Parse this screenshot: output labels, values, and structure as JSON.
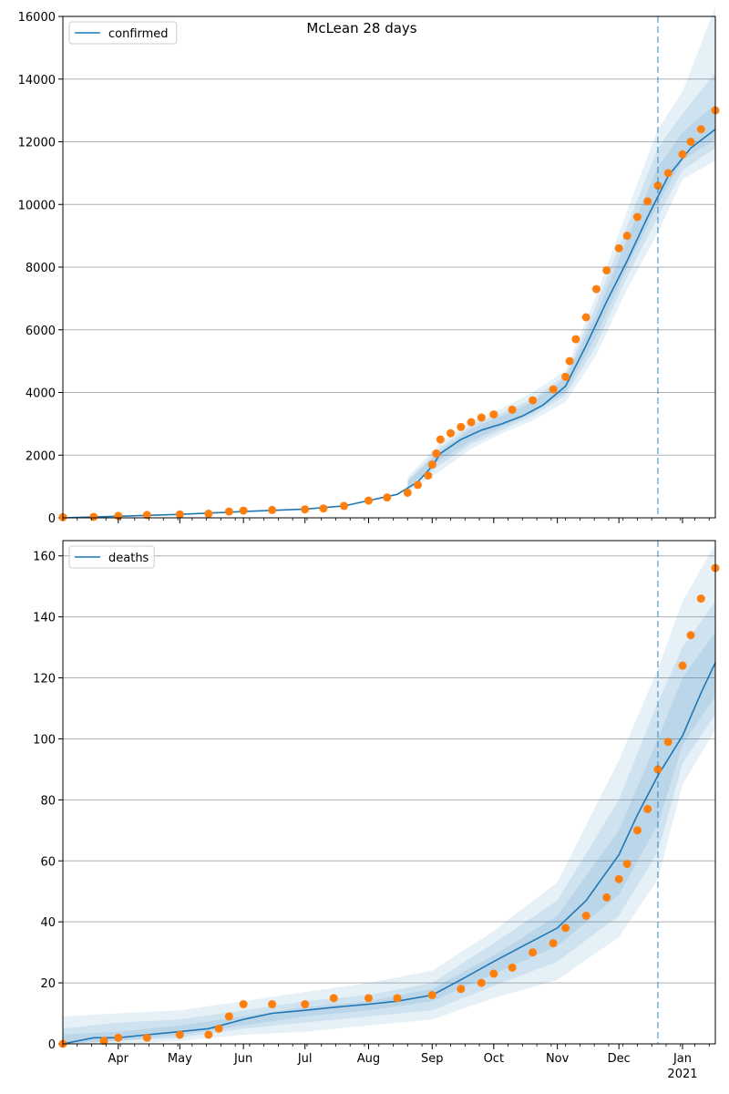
{
  "title": "McLean 28 days",
  "colors": {
    "model_line": "#1f77b4",
    "observed": "#ff7f0e",
    "band": "#1f77b4",
    "grid": "#b0b0b0",
    "vline": "#1f77b4"
  },
  "chart_data": [
    {
      "type": "line",
      "name": "confirmed-panel",
      "title": "McLean 28 days",
      "xlabel": "",
      "ylabel": "",
      "x_range": [
        "2020-03-05",
        "2021-01-17"
      ],
      "ylim": [
        0,
        16000
      ],
      "y_ticks": [
        0,
        2000,
        4000,
        6000,
        8000,
        10000,
        12000,
        14000,
        16000
      ],
      "x_ticks": [],
      "grid": "y",
      "legend": {
        "position": "top-left",
        "entries": [
          "confirmed"
        ]
      },
      "vline_date": "2020-12-20",
      "bands": [
        {
          "x": [
            "2020-08-20",
            "2020-09-05",
            "2020-09-20",
            "2020-10-05",
            "2020-10-20",
            "2020-11-05",
            "2020-11-20",
            "2020-12-05",
            "2020-12-20",
            "2021-01-01",
            "2021-01-17"
          ],
          "lower": [
            800,
            1500,
            2200,
            2700,
            3100,
            3700,
            5200,
            7300,
            9100,
            10800,
            11400
          ],
          "upper": [
            1300,
            2400,
            3100,
            3500,
            4000,
            4700,
            7100,
            9800,
            12400,
            13600,
            16300
          ]
        },
        {
          "x": [
            "2020-08-20",
            "2020-09-05",
            "2020-09-20",
            "2020-10-05",
            "2020-10-20",
            "2020-11-05",
            "2020-11-20",
            "2020-12-05",
            "2020-12-20",
            "2021-01-01",
            "2021-01-17"
          ],
          "lower": [
            900,
            1700,
            2350,
            2800,
            3250,
            3900,
            5500,
            7700,
            9600,
            11100,
            11800
          ],
          "upper": [
            1200,
            2250,
            2950,
            3350,
            3800,
            4550,
            6800,
            9300,
            11800,
            12900,
            14200
          ]
        },
        {
          "x": [
            "2020-08-20",
            "2020-09-05",
            "2020-09-20",
            "2020-10-05",
            "2020-10-20",
            "2020-11-05",
            "2020-11-20",
            "2020-12-05",
            "2020-12-20",
            "2021-01-01",
            "2021-01-17"
          ],
          "lower": [
            950,
            1850,
            2450,
            2900,
            3350,
            4000,
            5800,
            8000,
            10000,
            11400,
            12100
          ],
          "upper": [
            1150,
            2150,
            2850,
            3250,
            3700,
            4450,
            6500,
            8900,
            11200,
            12300,
            13200
          ]
        }
      ],
      "series": [
        {
          "name": "confirmed",
          "style": "line",
          "x": [
            "2020-03-05",
            "2020-04-01",
            "2020-05-01",
            "2020-06-01",
            "2020-07-01",
            "2020-07-20",
            "2020-08-01",
            "2020-08-15",
            "2020-08-25",
            "2020-09-01",
            "2020-09-05",
            "2020-09-15",
            "2020-09-25",
            "2020-10-05",
            "2020-10-15",
            "2020-10-25",
            "2020-11-05",
            "2020-11-15",
            "2020-11-25",
            "2020-12-05",
            "2020-12-15",
            "2020-12-25",
            "2021-01-05",
            "2021-01-17"
          ],
          "y": [
            0,
            50,
            110,
            200,
            280,
            380,
            550,
            750,
            1150,
            1650,
            2050,
            2500,
            2800,
            3000,
            3250,
            3600,
            4200,
            5500,
            6900,
            8200,
            9600,
            10900,
            11800,
            12400
          ]
        },
        {
          "name": "observed",
          "style": "points",
          "x": [
            "2020-03-05",
            "2020-03-20",
            "2020-04-01",
            "2020-04-15",
            "2020-05-01",
            "2020-05-15",
            "2020-05-25",
            "2020-06-01",
            "2020-06-15",
            "2020-07-01",
            "2020-07-10",
            "2020-07-20",
            "2020-08-01",
            "2020-08-10",
            "2020-08-20",
            "2020-08-25",
            "2020-08-30",
            "2020-09-01",
            "2020-09-03",
            "2020-09-05",
            "2020-09-10",
            "2020-09-15",
            "2020-09-20",
            "2020-09-25",
            "2020-10-01",
            "2020-10-10",
            "2020-10-20",
            "2020-10-30",
            "2020-11-05",
            "2020-11-07",
            "2020-11-10",
            "2020-11-15",
            "2020-11-20",
            "2020-11-25",
            "2020-12-01",
            "2020-12-05",
            "2020-12-10",
            "2020-12-15",
            "2020-12-20",
            "2020-12-25",
            "2021-01-01",
            "2021-01-05",
            "2021-01-10",
            "2021-01-17"
          ],
          "y": [
            20,
            30,
            60,
            90,
            110,
            130,
            200,
            230,
            250,
            270,
            300,
            380,
            550,
            650,
            800,
            1050,
            1350,
            1700,
            2050,
            2500,
            2700,
            2900,
            3050,
            3200,
            3300,
            3450,
            3750,
            4100,
            4500,
            5000,
            5700,
            6400,
            7300,
            7900,
            8600,
            9000,
            9600,
            10100,
            10600,
            11000,
            11600,
            12000,
            12400,
            13000
          ]
        }
      ]
    },
    {
      "type": "line",
      "name": "deaths-panel",
      "title": "",
      "xlabel": "",
      "ylabel": "",
      "x_range": [
        "2020-03-05",
        "2021-01-17"
      ],
      "ylim": [
        0,
        165
      ],
      "y_ticks": [
        0,
        20,
        40,
        60,
        80,
        100,
        120,
        140,
        160
      ],
      "x_ticks": [
        {
          "date": "2020-04-01",
          "label": "Apr"
        },
        {
          "date": "2020-05-01",
          "label": "May"
        },
        {
          "date": "2020-06-01",
          "label": "Jun"
        },
        {
          "date": "2020-07-01",
          "label": "Jul"
        },
        {
          "date": "2020-08-01",
          "label": "Aug"
        },
        {
          "date": "2020-09-01",
          "label": "Sep"
        },
        {
          "date": "2020-10-01",
          "label": "Oct"
        },
        {
          "date": "2020-11-01",
          "label": "Nov"
        },
        {
          "date": "2020-12-01",
          "label": "Dec"
        },
        {
          "date": "2021-01-01",
          "label": "Jan",
          "sublabel": "2021"
        }
      ],
      "grid": "y",
      "legend": {
        "position": "top-left",
        "entries": [
          "deaths"
        ]
      },
      "vline_date": "2020-12-20",
      "bands": [
        {
          "x": [
            "2020-03-05",
            "2020-04-01",
            "2020-05-01",
            "2020-06-01",
            "2020-07-01",
            "2020-08-01",
            "2020-09-01",
            "2020-10-01",
            "2020-11-01",
            "2020-12-01",
            "2020-12-20",
            "2021-01-01",
            "2021-01-17"
          ],
          "lower": [
            0,
            0,
            1,
            3,
            4,
            6,
            8,
            15,
            21,
            35,
            54,
            85,
            103
          ],
          "upper": [
            9,
            10,
            11,
            14,
            17,
            20,
            24,
            37,
            53,
            93,
            123,
            145,
            164
          ]
        },
        {
          "x": [
            "2020-03-05",
            "2020-04-01",
            "2020-05-01",
            "2020-06-01",
            "2020-07-01",
            "2020-08-01",
            "2020-09-01",
            "2020-10-01",
            "2020-11-01",
            "2020-12-01",
            "2020-12-20",
            "2021-01-01",
            "2021-01-17"
          ],
          "lower": [
            0,
            1,
            2,
            5,
            7,
            9,
            11,
            19,
            27,
            42,
            63,
            92,
            108
          ],
          "upper": [
            5,
            7,
            8,
            11,
            14,
            16,
            20,
            33,
            47,
            80,
            112,
            130,
            145
          ]
        },
        {
          "x": [
            "2020-03-05",
            "2020-04-01",
            "2020-05-01",
            "2020-06-01",
            "2020-07-01",
            "2020-08-01",
            "2020-09-01",
            "2020-10-01",
            "2020-11-01",
            "2020-12-01",
            "2020-12-20",
            "2021-01-01",
            "2021-01-17"
          ],
          "lower": [
            0,
            1,
            3,
            6,
            9,
            11,
            14,
            23,
            32,
            49,
            72,
            98,
            114
          ],
          "upper": [
            3,
            4,
            6,
            9,
            12,
            14,
            18,
            29,
            42,
            70,
            100,
            120,
            135
          ]
        }
      ],
      "series": [
        {
          "name": "deaths",
          "style": "line",
          "x": [
            "2020-03-05",
            "2020-03-20",
            "2020-04-01",
            "2020-04-15",
            "2020-05-01",
            "2020-05-15",
            "2020-06-01",
            "2020-06-15",
            "2020-07-01",
            "2020-07-15",
            "2020-08-01",
            "2020-08-15",
            "2020-09-01",
            "2020-09-15",
            "2020-10-01",
            "2020-10-15",
            "2020-11-01",
            "2020-11-15",
            "2020-12-01",
            "2020-12-10",
            "2020-12-20",
            "2021-01-01",
            "2021-01-10",
            "2021-01-17"
          ],
          "y": [
            0,
            2,
            2,
            3,
            4,
            5,
            8,
            10,
            11,
            12,
            13,
            14,
            16,
            21,
            27,
            32,
            38,
            47,
            62,
            75,
            88,
            101,
            115,
            125
          ]
        },
        {
          "name": "observed",
          "style": "points",
          "x": [
            "2020-03-05",
            "2020-03-25",
            "2020-04-01",
            "2020-04-15",
            "2020-05-01",
            "2020-05-15",
            "2020-05-20",
            "2020-05-25",
            "2020-06-01",
            "2020-06-15",
            "2020-07-01",
            "2020-07-15",
            "2020-08-01",
            "2020-08-15",
            "2020-09-01",
            "2020-09-15",
            "2020-09-25",
            "2020-10-01",
            "2020-10-10",
            "2020-10-20",
            "2020-10-30",
            "2020-11-05",
            "2020-11-15",
            "2020-11-25",
            "2020-12-01",
            "2020-12-05",
            "2020-12-10",
            "2020-12-15",
            "2020-12-20",
            "2020-12-25",
            "2021-01-01",
            "2021-01-05",
            "2021-01-10",
            "2021-01-17"
          ],
          "y": [
            0,
            1,
            2,
            2,
            3,
            3,
            5,
            9,
            13,
            13,
            13,
            15,
            15,
            15,
            16,
            18,
            20,
            23,
            25,
            30,
            33,
            38,
            42,
            48,
            54,
            59,
            70,
            77,
            90,
            99,
            124,
            134,
            146,
            156
          ]
        }
      ]
    }
  ]
}
